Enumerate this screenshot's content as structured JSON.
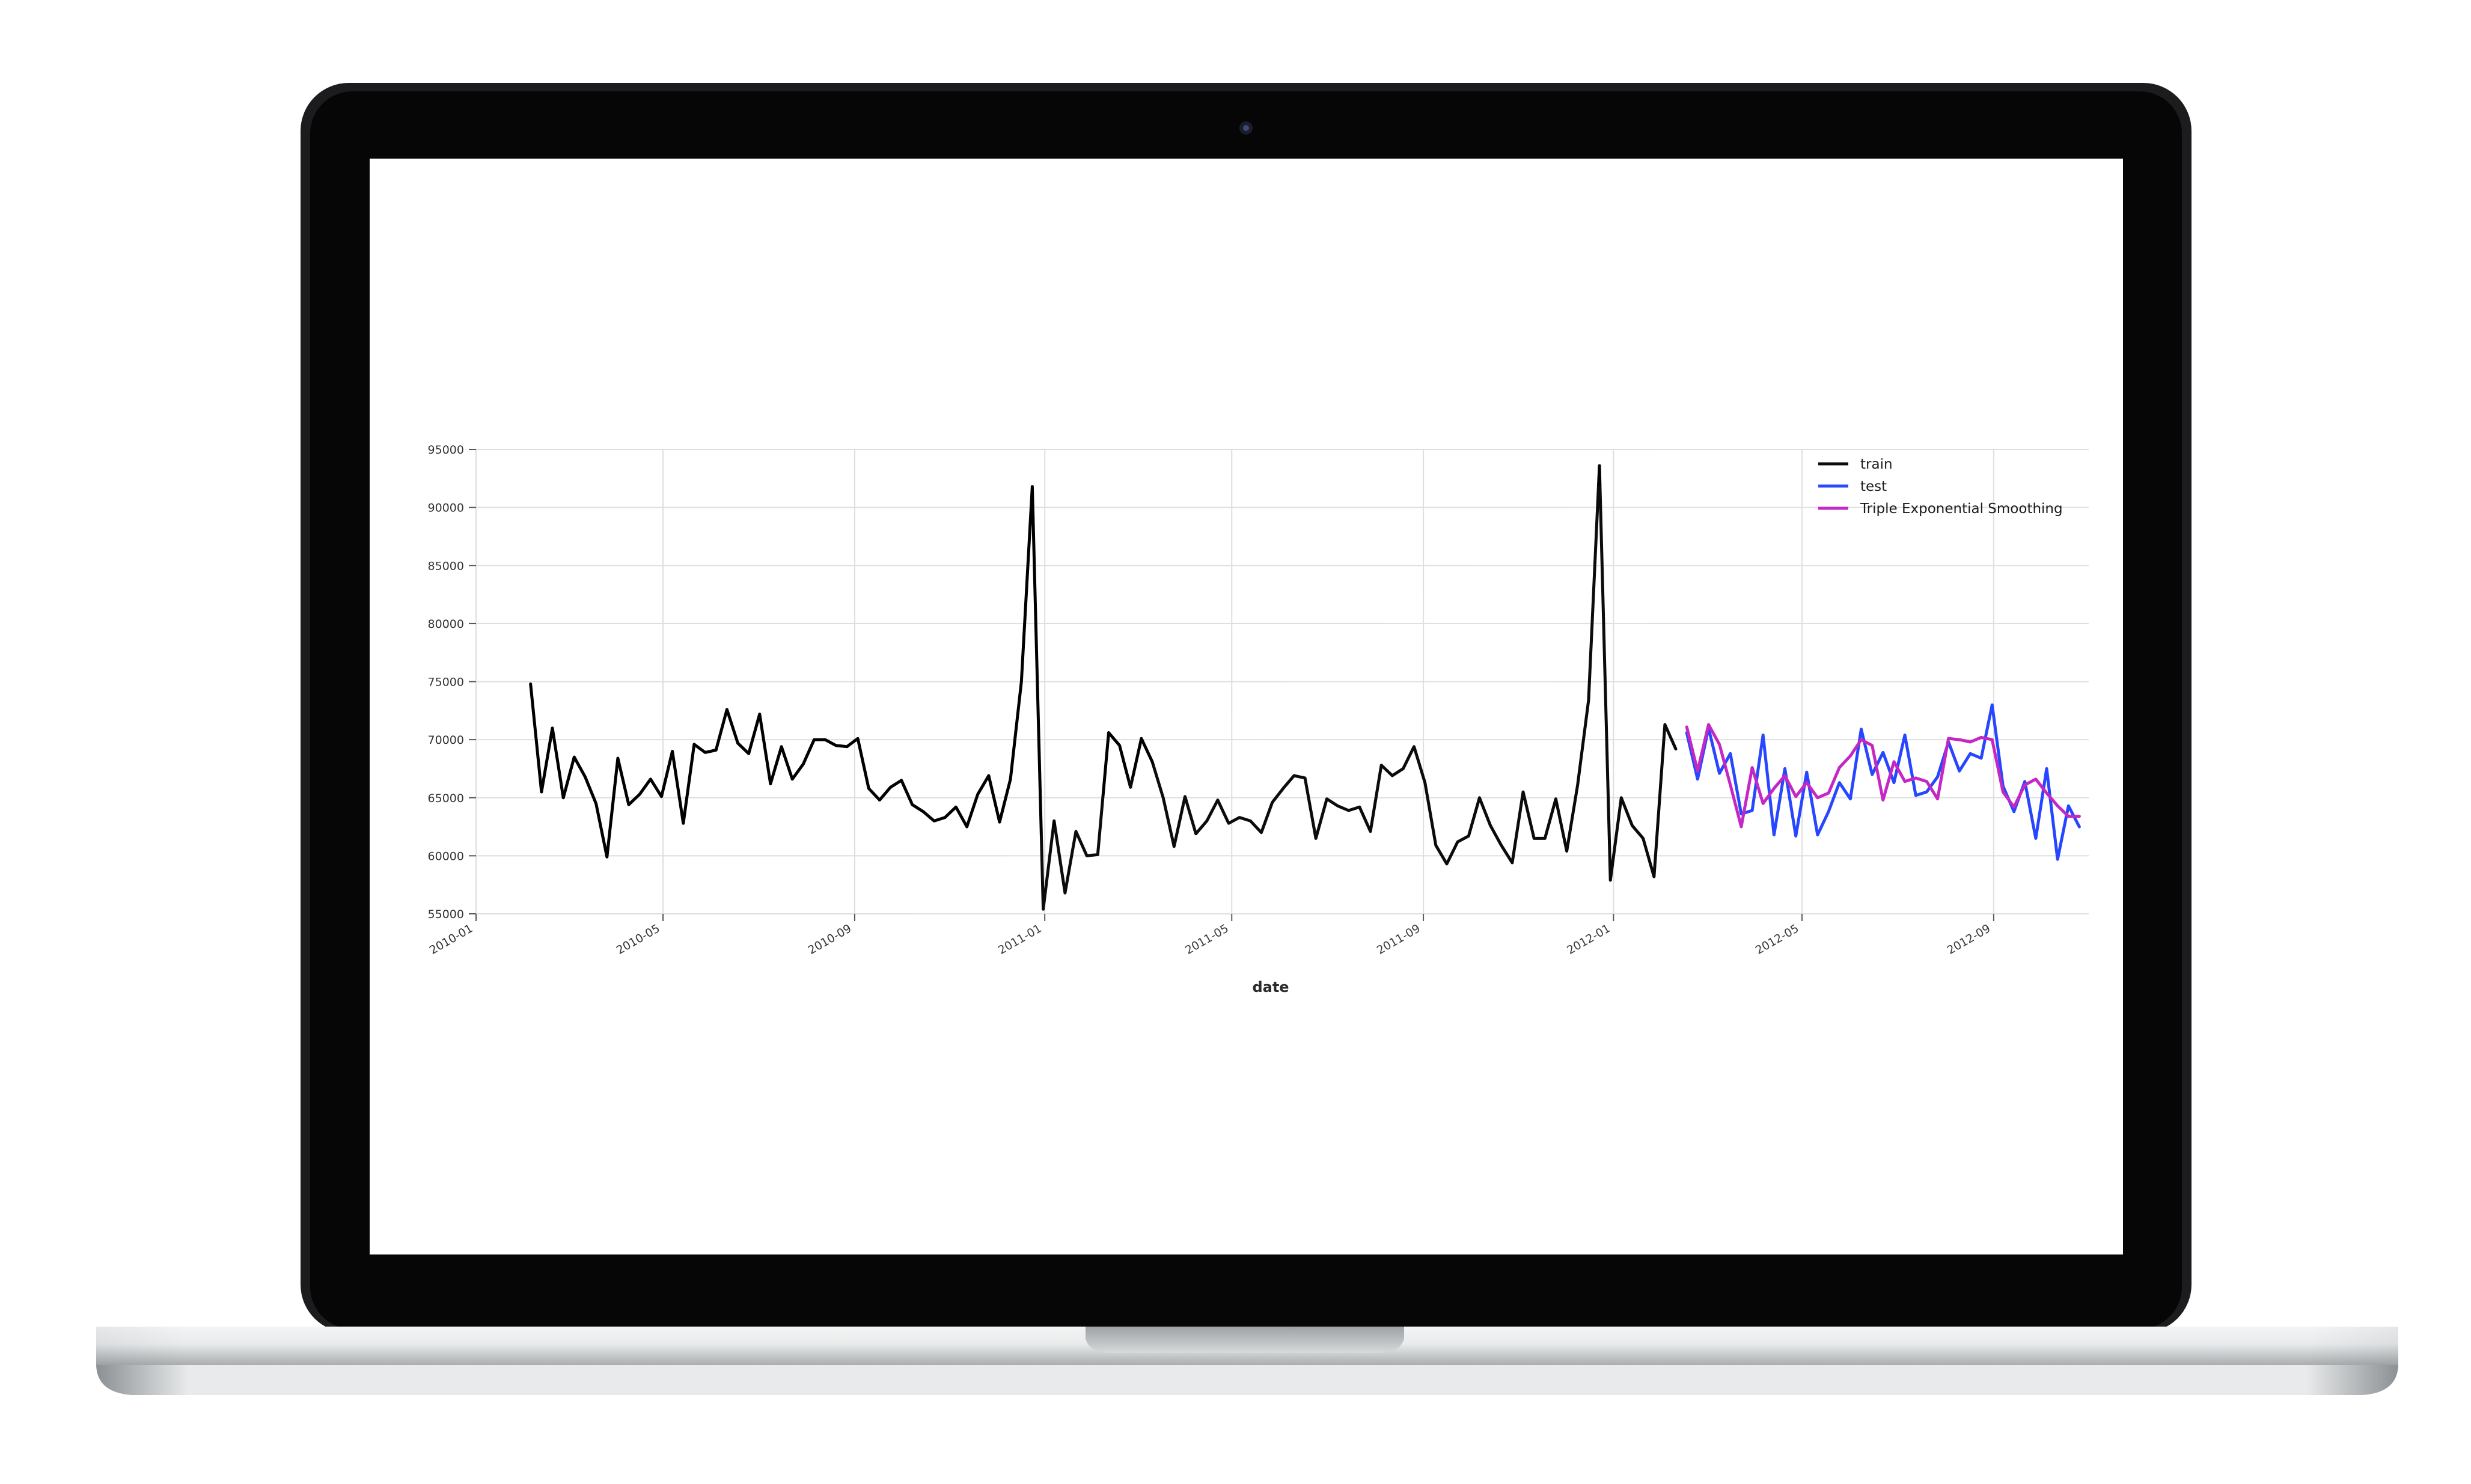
{
  "colors": {
    "train": "#000000",
    "test": "#1f3fff",
    "tes": "#c21fc2",
    "grid": "#dedede",
    "axis_text": "#333333",
    "bezel": "#060606",
    "screen_bg": "#ffffff"
  },
  "device": {
    "camera_icon": "camera-icon"
  },
  "chart_data": {
    "type": "line",
    "xlabel": "date",
    "ylabel": "",
    "title": "",
    "grid": true,
    "legend_position": "top-right",
    "xlim": [
      "2010-01-01",
      "2012-11-01"
    ],
    "ylim": [
      55000,
      95000
    ],
    "x_ticks": [
      "2010-01",
      "2010-05",
      "2010-09",
      "2011-01",
      "2011-05",
      "2011-09",
      "2012-01",
      "2012-05",
      "2012-09"
    ],
    "y_ticks": [
      55000,
      60000,
      65000,
      70000,
      75000,
      80000,
      85000,
      90000,
      95000
    ],
    "legend": [
      "train",
      "test",
      "Triple Exponential Smoothing"
    ],
    "series": [
      {
        "name": "train",
        "color": "#000000",
        "points": [
          [
            "2010-02-05",
            74800
          ],
          [
            "2010-02-12",
            65500
          ],
          [
            "2010-02-19",
            71000
          ],
          [
            "2010-02-26",
            65000
          ],
          [
            "2010-03-05",
            68500
          ],
          [
            "2010-03-12",
            66800
          ],
          [
            "2010-03-19",
            64500
          ],
          [
            "2010-03-26",
            59900
          ],
          [
            "2010-04-02",
            68400
          ],
          [
            "2010-04-09",
            64400
          ],
          [
            "2010-04-16",
            65300
          ],
          [
            "2010-04-23",
            66600
          ],
          [
            "2010-04-30",
            65100
          ],
          [
            "2010-05-07",
            69000
          ],
          [
            "2010-05-14",
            62800
          ],
          [
            "2010-05-21",
            69600
          ],
          [
            "2010-05-28",
            68900
          ],
          [
            "2010-06-04",
            69100
          ],
          [
            "2010-06-11",
            72600
          ],
          [
            "2010-06-18",
            69700
          ],
          [
            "2010-06-25",
            68800
          ],
          [
            "2010-07-02",
            72200
          ],
          [
            "2010-07-09",
            66200
          ],
          [
            "2010-07-16",
            69400
          ],
          [
            "2010-07-23",
            66600
          ],
          [
            "2010-07-30",
            67900
          ],
          [
            "2010-08-06",
            70000
          ],
          [
            "2010-08-13",
            70000
          ],
          [
            "2010-08-20",
            69500
          ],
          [
            "2010-08-27",
            69400
          ],
          [
            "2010-09-03",
            70100
          ],
          [
            "2010-09-10",
            65800
          ],
          [
            "2010-09-17",
            64800
          ],
          [
            "2010-09-24",
            65900
          ],
          [
            "2010-10-01",
            66500
          ],
          [
            "2010-10-08",
            64400
          ],
          [
            "2010-10-15",
            63800
          ],
          [
            "2010-10-22",
            63000
          ],
          [
            "2010-10-29",
            63300
          ],
          [
            "2010-11-05",
            64200
          ],
          [
            "2010-11-12",
            62500
          ],
          [
            "2010-11-19",
            65300
          ],
          [
            "2010-11-26",
            66900
          ],
          [
            "2010-12-03",
            62900
          ],
          [
            "2010-12-10",
            66600
          ],
          [
            "2010-12-17",
            75000
          ],
          [
            "2010-12-24",
            91800
          ],
          [
            "2010-12-31",
            55400
          ],
          [
            "2011-01-07",
            63000
          ],
          [
            "2011-01-14",
            56800
          ],
          [
            "2011-01-21",
            62100
          ],
          [
            "2011-01-28",
            60000
          ],
          [
            "2011-02-04",
            60100
          ],
          [
            "2011-02-11",
            70600
          ],
          [
            "2011-02-18",
            69500
          ],
          [
            "2011-02-25",
            65900
          ],
          [
            "2011-03-04",
            70100
          ],
          [
            "2011-03-11",
            68100
          ],
          [
            "2011-03-18",
            65000
          ],
          [
            "2011-03-25",
            60800
          ],
          [
            "2011-04-01",
            65100
          ],
          [
            "2011-04-08",
            61900
          ],
          [
            "2011-04-15",
            63000
          ],
          [
            "2011-04-22",
            64800
          ],
          [
            "2011-04-29",
            62800
          ],
          [
            "2011-05-06",
            63300
          ],
          [
            "2011-05-13",
            63000
          ],
          [
            "2011-05-20",
            62000
          ],
          [
            "2011-05-27",
            64600
          ],
          [
            "2011-06-03",
            65800
          ],
          [
            "2011-06-10",
            66900
          ],
          [
            "2011-06-17",
            66700
          ],
          [
            "2011-06-24",
            61500
          ],
          [
            "2011-07-01",
            64900
          ],
          [
            "2011-07-08",
            64300
          ],
          [
            "2011-07-15",
            63900
          ],
          [
            "2011-07-22",
            64200
          ],
          [
            "2011-07-29",
            62100
          ],
          [
            "2011-08-05",
            67800
          ],
          [
            "2011-08-12",
            66900
          ],
          [
            "2011-08-19",
            67500
          ],
          [
            "2011-08-26",
            69400
          ],
          [
            "2011-09-02",
            66300
          ],
          [
            "2011-09-09",
            60900
          ],
          [
            "2011-09-16",
            59300
          ],
          [
            "2011-09-23",
            61200
          ],
          [
            "2011-09-30",
            61700
          ],
          [
            "2011-10-07",
            65000
          ],
          [
            "2011-10-14",
            62600
          ],
          [
            "2011-10-21",
            60900
          ],
          [
            "2011-10-28",
            59400
          ],
          [
            "2011-11-04",
            65500
          ],
          [
            "2011-11-11",
            61500
          ],
          [
            "2011-11-18",
            61500
          ],
          [
            "2011-11-25",
            64900
          ],
          [
            "2011-12-02",
            60400
          ],
          [
            "2011-12-09",
            66100
          ],
          [
            "2011-12-16",
            73400
          ],
          [
            "2011-12-23",
            93600
          ],
          [
            "2011-12-30",
            57900
          ],
          [
            "2012-01-06",
            65000
          ],
          [
            "2012-01-13",
            62600
          ],
          [
            "2012-01-20",
            61500
          ],
          [
            "2012-01-27",
            58200
          ],
          [
            "2012-02-03",
            71300
          ],
          [
            "2012-02-10",
            69200
          ]
        ]
      },
      {
        "name": "test",
        "color": "#1f3fff",
        "points": [
          [
            "2012-02-17",
            70600
          ],
          [
            "2012-02-24",
            66600
          ],
          [
            "2012-03-02",
            71000
          ],
          [
            "2012-03-09",
            67100
          ],
          [
            "2012-03-16",
            68800
          ],
          [
            "2012-03-23",
            63600
          ],
          [
            "2012-03-30",
            63900
          ],
          [
            "2012-04-06",
            70400
          ],
          [
            "2012-04-13",
            61800
          ],
          [
            "2012-04-20",
            67500
          ],
          [
            "2012-04-27",
            61700
          ],
          [
            "2012-05-04",
            67200
          ],
          [
            "2012-05-11",
            61800
          ],
          [
            "2012-05-18",
            63800
          ],
          [
            "2012-05-25",
            66300
          ],
          [
            "2012-06-01",
            64900
          ],
          [
            "2012-06-08",
            70900
          ],
          [
            "2012-06-15",
            67000
          ],
          [
            "2012-06-22",
            68900
          ],
          [
            "2012-06-29",
            66300
          ],
          [
            "2012-07-06",
            70400
          ],
          [
            "2012-07-13",
            65200
          ],
          [
            "2012-07-20",
            65500
          ],
          [
            "2012-07-27",
            66800
          ],
          [
            "2012-08-03",
            69800
          ],
          [
            "2012-08-10",
            67300
          ],
          [
            "2012-08-17",
            68800
          ],
          [
            "2012-08-24",
            68400
          ],
          [
            "2012-08-31",
            73000
          ],
          [
            "2012-09-07",
            66000
          ],
          [
            "2012-09-14",
            63800
          ],
          [
            "2012-09-21",
            66400
          ],
          [
            "2012-09-28",
            61500
          ],
          [
            "2012-10-05",
            67500
          ],
          [
            "2012-10-12",
            59700
          ],
          [
            "2012-10-19",
            64300
          ],
          [
            "2012-10-26",
            62500
          ]
        ]
      },
      {
        "name": "Triple Exponential Smoothing",
        "color": "#c21fc2",
        "points": [
          [
            "2012-02-17",
            71100
          ],
          [
            "2012-02-24",
            67300
          ],
          [
            "2012-03-02",
            71300
          ],
          [
            "2012-03-09",
            69600
          ],
          [
            "2012-03-16",
            66100
          ],
          [
            "2012-03-23",
            62500
          ],
          [
            "2012-03-30",
            67600
          ],
          [
            "2012-04-06",
            64500
          ],
          [
            "2012-04-13",
            65800
          ],
          [
            "2012-04-20",
            66900
          ],
          [
            "2012-04-27",
            65100
          ],
          [
            "2012-05-04",
            66300
          ],
          [
            "2012-05-11",
            65000
          ],
          [
            "2012-05-18",
            65400
          ],
          [
            "2012-05-25",
            67600
          ],
          [
            "2012-06-01",
            68600
          ],
          [
            "2012-06-08",
            70000
          ],
          [
            "2012-06-15",
            69500
          ],
          [
            "2012-06-22",
            64800
          ],
          [
            "2012-06-29",
            68100
          ],
          [
            "2012-07-06",
            66400
          ],
          [
            "2012-07-13",
            66700
          ],
          [
            "2012-07-20",
            66400
          ],
          [
            "2012-07-27",
            64900
          ],
          [
            "2012-08-03",
            70100
          ],
          [
            "2012-08-10",
            70000
          ],
          [
            "2012-08-17",
            69800
          ],
          [
            "2012-08-24",
            70200
          ],
          [
            "2012-08-31",
            70000
          ],
          [
            "2012-09-07",
            65500
          ],
          [
            "2012-09-14",
            64200
          ],
          [
            "2012-09-21",
            66100
          ],
          [
            "2012-09-28",
            66600
          ],
          [
            "2012-10-05",
            65400
          ],
          [
            "2012-10-12",
            64300
          ],
          [
            "2012-10-19",
            63400
          ],
          [
            "2012-10-26",
            63400
          ]
        ]
      }
    ]
  }
}
